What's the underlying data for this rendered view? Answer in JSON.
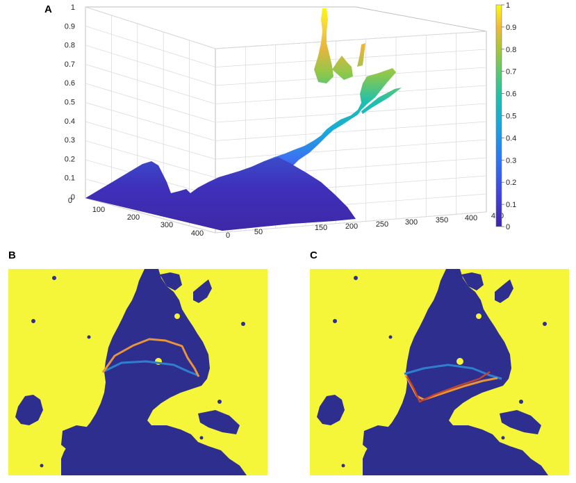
{
  "panels": [
    {
      "letter": "A"
    },
    {
      "letter": "B"
    },
    {
      "letter": "C"
    }
  ],
  "colors": {
    "parula_low": "#3e26a8",
    "parula_mid": "#1fbfae",
    "parula_high": "#f9fb0e",
    "mask_water": "#2e2e8e",
    "mask_land": "#f5f53a",
    "trajectory_blue": "#2f7fcf",
    "trajectory_orange": "#e8943c",
    "trajectory_red": "#c4452a"
  },
  "chart_data": [
    {
      "type": "surface3d",
      "title": "",
      "zlim": [
        0,
        1
      ],
      "z_ticks": [
        "0",
        "0.1",
        "0.2",
        "0.3",
        "0.4",
        "0.5",
        "0.6",
        "0.7",
        "0.8",
        "0.9",
        "1"
      ],
      "y_ticks": [
        "0",
        "100",
        "200",
        "300",
        "400"
      ],
      "x_ticks": [
        "0",
        "50",
        "150",
        "200",
        "250",
        "300",
        "350",
        "400",
        "450"
      ],
      "colorbar": {
        "range": [
          0,
          1
        ],
        "ticks": [
          "0",
          "0.1",
          "0.2",
          "0.3",
          "0.4",
          "0.5",
          "0.6",
          "0.7",
          "0.8",
          "0.9",
          "1"
        ]
      },
      "grid": true
    },
    {
      "type": "heatmap",
      "description_colors": [
        "water",
        "land"
      ],
      "paths": [
        "blue",
        "orange"
      ]
    },
    {
      "type": "heatmap",
      "description_colors": [
        "water",
        "land"
      ],
      "paths": [
        "blue",
        "orange",
        "red"
      ]
    }
  ]
}
